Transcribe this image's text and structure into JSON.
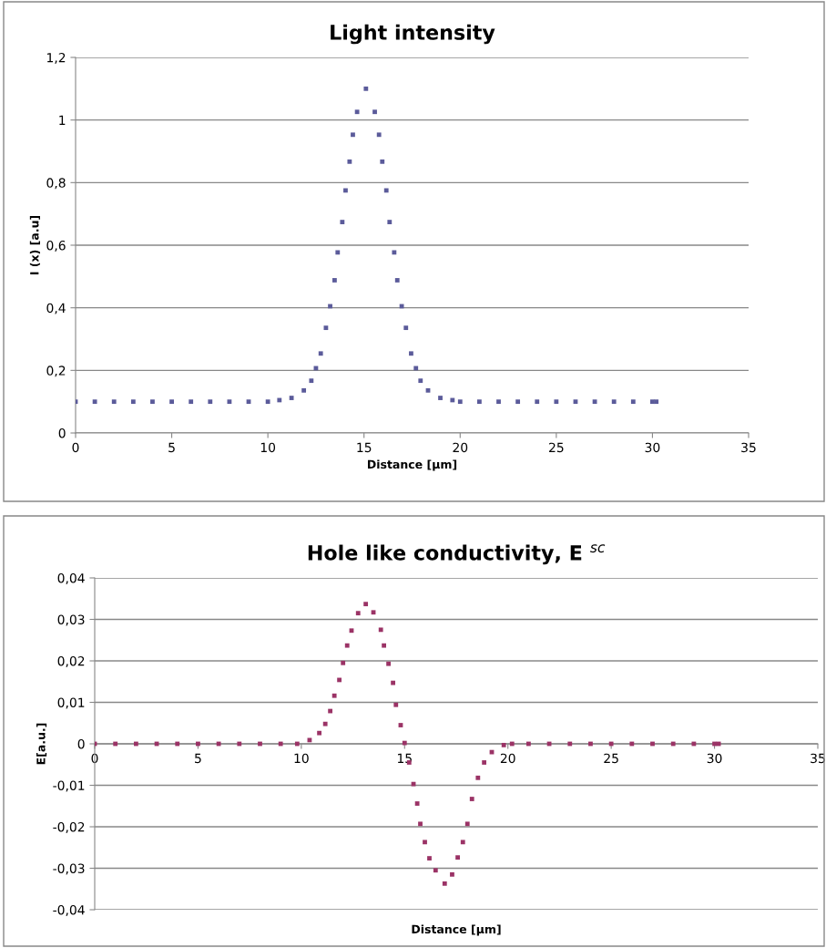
{
  "chart_data": [
    {
      "type": "scatter",
      "title": "Light intensity",
      "xlabel": "Distance [μm]",
      "ylabel": "I (x) [a.u]",
      "marker": "square",
      "grid": "y",
      "xlim": [
        0,
        35
      ],
      "xticks": [
        0,
        5,
        10,
        15,
        20,
        25,
        30,
        35
      ],
      "ylim": [
        0,
        1.2
      ],
      "yticks": [
        0,
        {
          "value": 0.2,
          "label": "0,2"
        },
        {
          "value": 0.4,
          "label": "0,4"
        },
        {
          "value": 0.6,
          "label": "0,6"
        },
        {
          "value": 0.8,
          "label": "0,8"
        },
        1,
        {
          "value": 1.2,
          "label": "1,2"
        }
      ],
      "series": [
        {
          "color": "#5b5b9a",
          "x": [
            0,
            1,
            2,
            3,
            4,
            5,
            6,
            7,
            8,
            9,
            10,
            10.6,
            11.23,
            11.87,
            12.26,
            12.5,
            12.75,
            13.02,
            13.24,
            13.47,
            13.63,
            13.87,
            14.04,
            14.25,
            14.42,
            14.64,
            15.1,
            15.56,
            15.78,
            15.95,
            16.16,
            16.33,
            16.57,
            16.73,
            16.96,
            17.18,
            17.45,
            17.7,
            17.94,
            18.33,
            18.97,
            19.6,
            20,
            21,
            22,
            23,
            24,
            25,
            26,
            27,
            28,
            29,
            30,
            30.2
          ],
          "values": [
            0.1,
            0.1,
            0.1,
            0.1,
            0.1,
            0.1,
            0.1,
            0.1,
            0.1,
            0.1,
            0.1,
            0.105,
            0.112,
            0.136,
            0.167,
            0.207,
            0.254,
            0.336,
            0.405,
            0.488,
            0.577,
            0.674,
            0.775,
            0.867,
            0.953,
            1.026,
            1.1,
            1.026,
            0.953,
            0.867,
            0.775,
            0.674,
            0.577,
            0.488,
            0.405,
            0.336,
            0.254,
            0.207,
            0.167,
            0.136,
            0.112,
            0.105,
            0.1,
            0.1,
            0.1,
            0.1,
            0.1,
            0.1,
            0.1,
            0.1,
            0.1,
            0.1,
            0.1,
            0.1
          ]
        }
      ]
    },
    {
      "type": "scatter",
      "title": "Hole like conductivity, E $^{sc}$",
      "xlabel": "Distance [μm]",
      "ylabel": "E[a.u.]",
      "marker": "square",
      "grid": "y",
      "xlim": [
        0,
        35
      ],
      "xticks": [
        0,
        5,
        10,
        15,
        20,
        25,
        30,
        35
      ],
      "ylim": [
        -0.04,
        0.04
      ],
      "yticks": [
        {
          "value": -0.04,
          "label": "-0,04"
        },
        {
          "value": -0.03,
          "label": "-0,03"
        },
        {
          "value": -0.02,
          "label": "-0,02"
        },
        {
          "value": -0.01,
          "label": "-0,01"
        },
        0,
        {
          "value": 0.01,
          "label": "0,01"
        },
        {
          "value": 0.02,
          "label": "0,02"
        },
        {
          "value": 0.03,
          "label": "0,03"
        },
        {
          "value": 0.04,
          "label": "0,04"
        }
      ],
      "series": [
        {
          "color": "#9b3366",
          "x": [
            0,
            1,
            2,
            3,
            4,
            5,
            6,
            7,
            8,
            9,
            9.8,
            10.4,
            10.87,
            11.16,
            11.4,
            11.6,
            11.84,
            12.02,
            12.22,
            12.43,
            12.75,
            13.12,
            13.49,
            13.85,
            14.0,
            14.22,
            14.44,
            14.58,
            14.81,
            15.0,
            15.22,
            15.43,
            15.61,
            15.76,
            15.98,
            16.2,
            16.5,
            16.94,
            17.3,
            17.57,
            17.82,
            18.04,
            18.26,
            18.55,
            18.85,
            19.22,
            19.8,
            20.2,
            21,
            22,
            23,
            24,
            25,
            26,
            27,
            28,
            29,
            30,
            30.2
          ],
          "values": [
            0,
            0,
            0,
            0,
            0,
            0,
            0,
            0,
            0,
            0,
            0,
            0.0009,
            0.0026,
            0.0048,
            0.0079,
            0.0116,
            0.0154,
            0.0195,
            0.0237,
            0.0273,
            0.0315,
            0.0337,
            0.0317,
            0.0275,
            0.0237,
            0.0193,
            0.0147,
            0.0094,
            0.0045,
            0.0002,
            -0.0045,
            -0.0097,
            -0.0144,
            -0.0193,
            -0.0237,
            -0.0276,
            -0.0305,
            -0.0337,
            -0.0315,
            -0.0274,
            -0.0237,
            -0.0193,
            -0.0133,
            -0.0082,
            -0.0045,
            -0.002,
            -0.0003,
            0,
            0,
            0,
            0,
            0,
            0,
            0,
            0,
            0,
            0,
            0,
            0
          ]
        }
      ]
    }
  ]
}
